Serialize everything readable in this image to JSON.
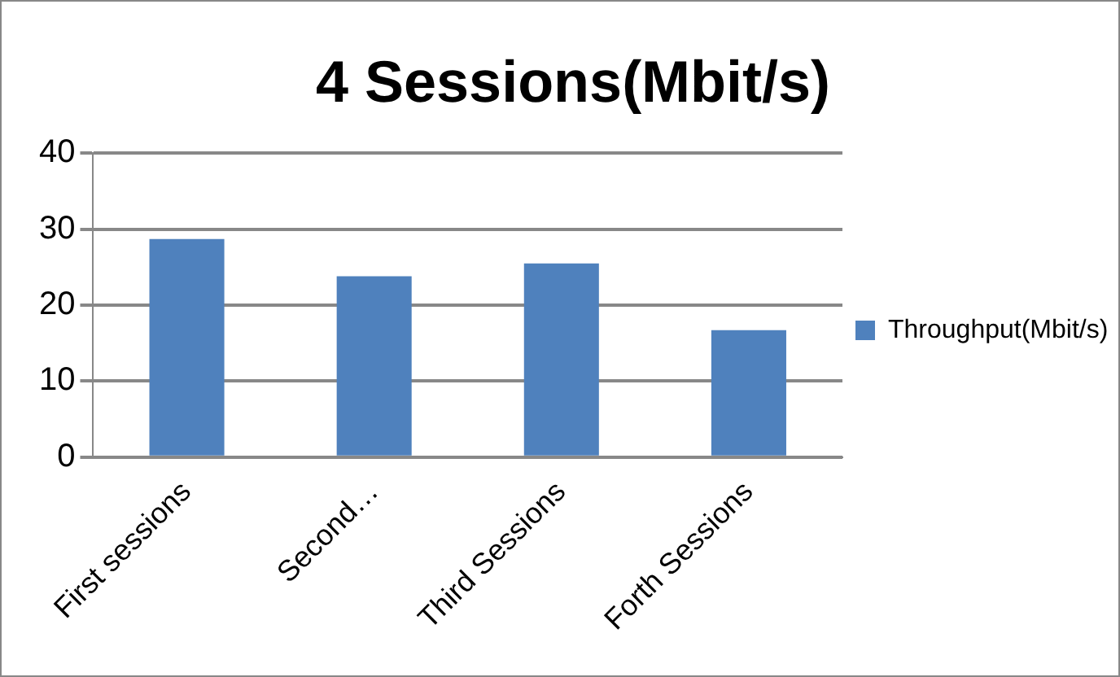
{
  "chart_data": {
    "type": "bar",
    "title": "4 Sessions(Mbit/s)",
    "categories": [
      "First sessions",
      "Second…",
      "Third Sessions",
      "Forth Sessions"
    ],
    "series": [
      {
        "name": "Throughput(Mbit/s)",
        "color": "#4f81bd",
        "values": [
          28.7,
          23.8,
          25.5,
          16.7
        ]
      }
    ],
    "ylim": [
      0,
      40
    ],
    "yticks": [
      0,
      10,
      20,
      30,
      40
    ],
    "grid": "y",
    "legend": "right"
  }
}
